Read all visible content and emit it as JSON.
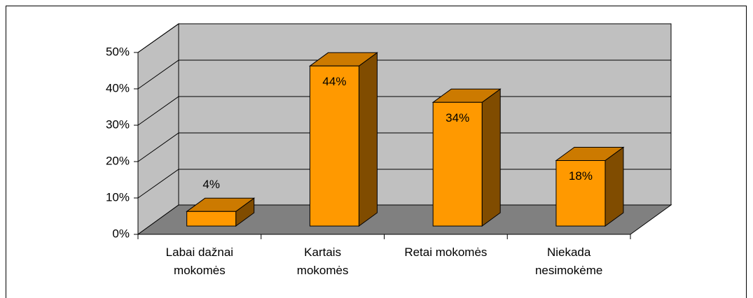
{
  "chart_data": {
    "type": "bar3d",
    "categories": [
      "Labai dažnai\nmokomės",
      "Kartais\nmokomės",
      "Retai mokomės",
      "Niekada\nnesimokėme"
    ],
    "values": [
      4,
      44,
      34,
      18
    ],
    "value_labels": [
      "4%",
      "44%",
      "34%",
      "18%"
    ],
    "color": "#ff9900",
    "ylim": [
      0,
      50
    ],
    "yticks": [
      {
        "value": 0,
        "label": "0%"
      },
      {
        "value": 10,
        "label": "10%"
      },
      {
        "value": 20,
        "label": "20%"
      },
      {
        "value": 30,
        "label": "30%"
      },
      {
        "value": 40,
        "label": "40%"
      },
      {
        "value": 50,
        "label": "50%"
      }
    ],
    "grid": true
  }
}
